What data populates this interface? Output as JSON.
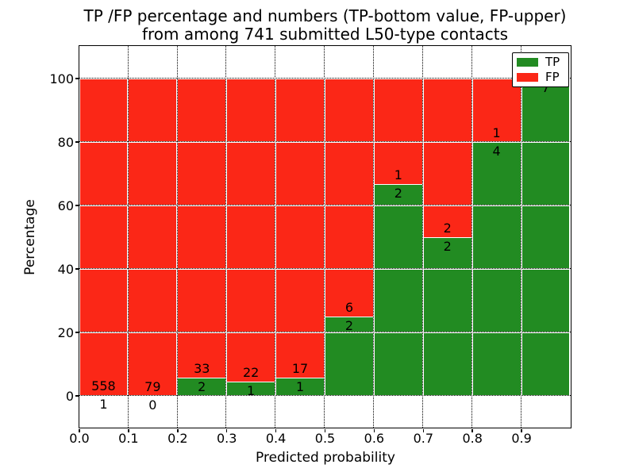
{
  "chart_data": {
    "type": "bar",
    "stacked": true,
    "normalized_to_percent": true,
    "title_line1": "TP /FP percentage and numbers (TP-bottom value, FP-upper)",
    "title_line2": "from among 741 submitted L50-type contacts",
    "xlabel": "Predicted probability",
    "ylabel": "Percentage",
    "xlim": [
      0.0,
      1.0
    ],
    "ylim": [
      -10,
      110
    ],
    "bin_width": 0.1,
    "grid": true,
    "x_tick_labels": [
      "0.0",
      "0.1",
      "0.2",
      "0.3",
      "0.4",
      "0.5",
      "0.6",
      "0.7",
      "0.8",
      "0.9"
    ],
    "y_tick_values": [
      0,
      20,
      40,
      60,
      80,
      100
    ],
    "categories": [
      "0.0-0.1",
      "0.1-0.2",
      "0.2-0.3",
      "0.3-0.4",
      "0.4-0.5",
      "0.5-0.6",
      "0.6-0.7",
      "0.7-0.8",
      "0.8-0.9",
      "0.9-1.0"
    ],
    "series": [
      {
        "name": "TP",
        "color": "#228b22",
        "counts": [
          1,
          0,
          2,
          1,
          1,
          2,
          2,
          2,
          4,
          7
        ]
      },
      {
        "name": "FP",
        "color": "#fb2717",
        "counts": [
          558,
          79,
          33,
          22,
          17,
          6,
          1,
          2,
          1,
          0
        ]
      }
    ],
    "tp_percent": [
      0.2,
      0.0,
      5.7,
      4.3,
      5.6,
      25.0,
      66.7,
      50.0,
      80.0,
      100.0
    ],
    "bar_labels": {
      "tp": [
        "1",
        "0",
        "2",
        "1",
        "1",
        "2",
        "2",
        "2",
        "4",
        "7"
      ],
      "fp": [
        "558",
        "79",
        "33",
        "22",
        "17",
        "6",
        "1",
        "2",
        "1",
        ""
      ]
    },
    "legend": {
      "position": "upper right",
      "entries": [
        {
          "label": "TP",
          "color": "#228b22"
        },
        {
          "label": "FP",
          "color": "#fb2717"
        }
      ]
    },
    "colors": {
      "tp_green": "#228b22",
      "fp_red": "#fb2717",
      "edge": "#ffffff",
      "frame": "#000000"
    }
  }
}
